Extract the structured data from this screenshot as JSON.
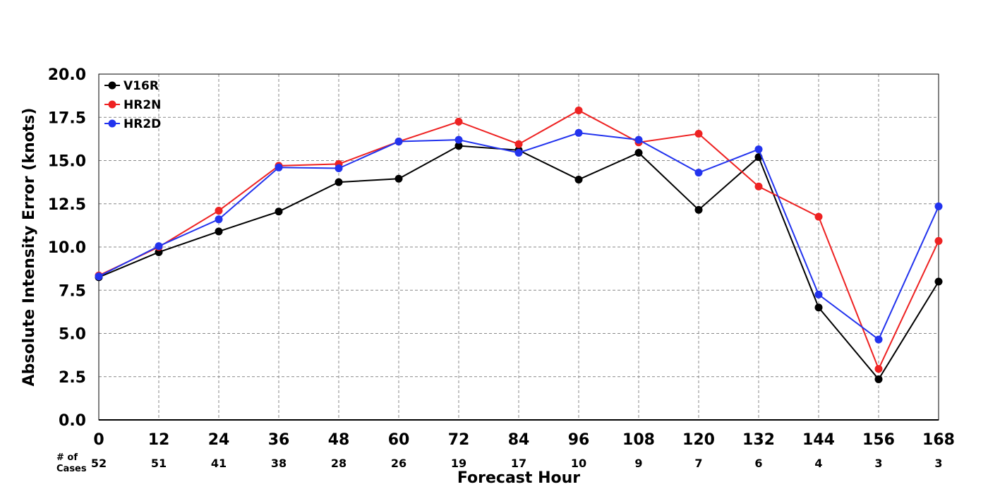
{
  "chart_data": {
    "type": "line",
    "x": [
      0,
      12,
      24,
      36,
      48,
      60,
      72,
      84,
      96,
      108,
      120,
      132,
      144,
      156,
      168
    ],
    "xlabel": "Forecast Hour",
    "ylabel": "Absolute Intensity Error (knots)",
    "xlim": [
      0,
      168
    ],
    "ylim": [
      0,
      20
    ],
    "yticks": [
      "0.0",
      "2.5",
      "5.0",
      "7.5",
      "10.0",
      "12.5",
      "15.0",
      "17.5",
      "20.0"
    ],
    "grid": true,
    "legend_position": "top-left",
    "cases_label_line1": "# of",
    "cases_label_line2": "Cases",
    "cases": [
      52,
      51,
      41,
      38,
      28,
      26,
      19,
      17,
      10,
      9,
      7,
      6,
      4,
      3,
      3
    ],
    "series": [
      {
        "name": "V16R",
        "color": "#000000",
        "values": [
          8.25,
          9.7,
          10.9,
          12.05,
          13.75,
          13.95,
          15.85,
          15.6,
          13.9,
          15.45,
          12.15,
          15.2,
          6.5,
          2.35,
          8.0
        ]
      },
      {
        "name": "HR2N",
        "color": "#ee2222",
        "values": [
          8.35,
          10.0,
          12.1,
          14.7,
          14.8,
          16.1,
          17.25,
          15.95,
          17.9,
          16.05,
          16.55,
          13.5,
          11.75,
          2.95,
          10.35
        ]
      },
      {
        "name": "HR2D",
        "color": "#2233ee",
        "values": [
          8.3,
          10.05,
          11.6,
          14.6,
          14.55,
          16.1,
          16.2,
          15.45,
          16.6,
          16.2,
          14.3,
          15.65,
          7.25,
          4.65,
          12.35
        ]
      }
    ]
  }
}
